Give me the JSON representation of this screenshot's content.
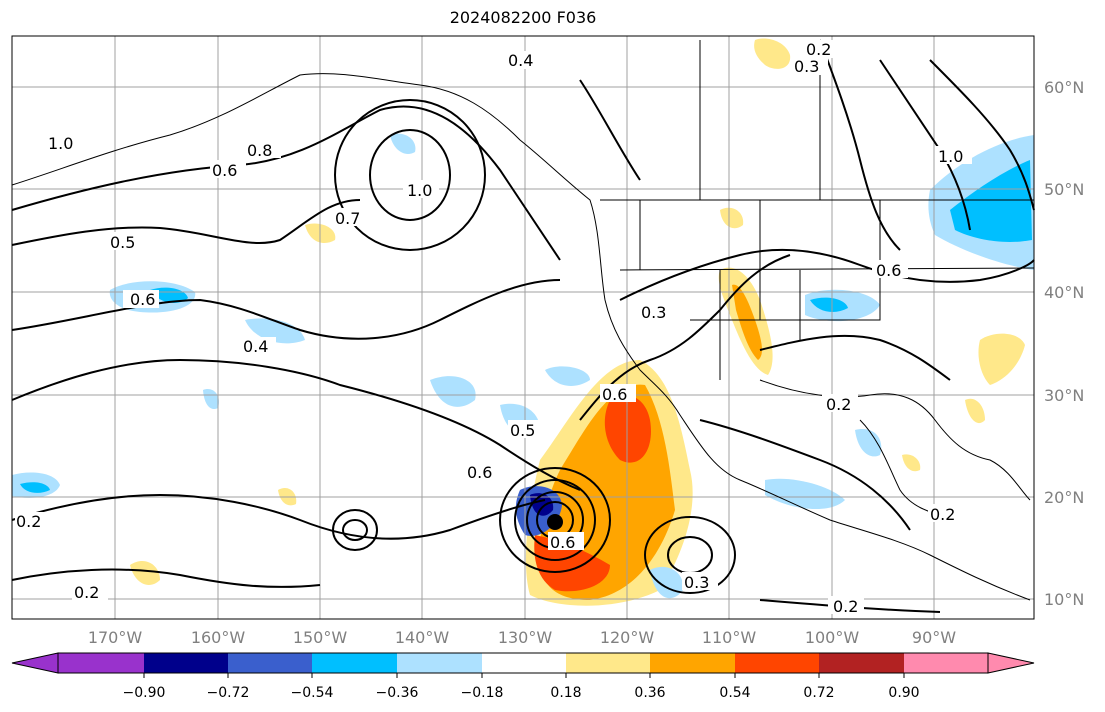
{
  "title": "2024082200 F036",
  "map": {
    "lat_labels": [
      "60°N",
      "50°N",
      "40°N",
      "30°N",
      "20°N",
      "10°N"
    ],
    "lon_labels": [
      "170°W",
      "160°W",
      "150°W",
      "140°W",
      "130°W",
      "120°W",
      "110°W",
      "100°W",
      "90°W"
    ],
    "contour_labels": [
      "0.2",
      "0.3",
      "0.4",
      "0.5",
      "0.6",
      "0.7",
      "0.8",
      "1.0"
    ]
  },
  "colorbar": {
    "ticks": [
      "−0.90",
      "−0.72",
      "−0.54",
      "−0.36",
      "−0.18",
      "0.18",
      "0.36",
      "0.54",
      "0.72",
      "0.90"
    ],
    "colors": [
      "#9932CC",
      "#00008B",
      "#3A5FCD",
      "#00BFFF",
      "#ADE1FF",
      "#FFFFFF",
      "#FFE88A",
      "#FFA500",
      "#FF4500",
      "#B22222",
      "#FF8AAE"
    ]
  }
}
